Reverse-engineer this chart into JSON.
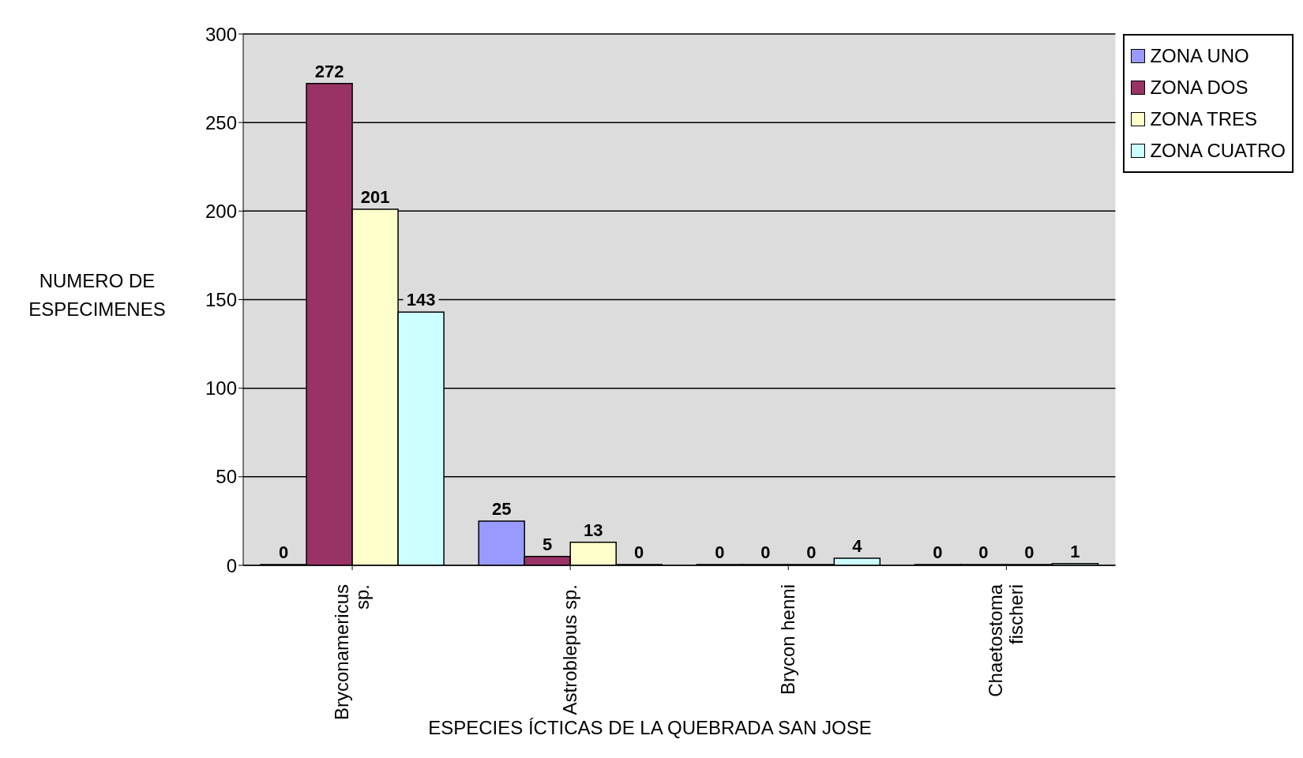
{
  "chart_data": {
    "type": "bar",
    "xlabel": "ESPECIES ÍCTICAS DE LA QUEBRADA SAN JOSE",
    "ylabel": "NUMERO DE ESPECIMENES",
    "categories": [
      "Bryconamericus sp.",
      "Astroblepus sp.",
      "Brycon henni",
      "Chaetostoma fischeri"
    ],
    "series": [
      {
        "name": "ZONA UNO",
        "color": "#9999ff",
        "values": [
          0,
          25,
          0,
          0
        ]
      },
      {
        "name": "ZONA DOS",
        "color": "#993366",
        "values": [
          272,
          5,
          0,
          0
        ]
      },
      {
        "name": "ZONA TRES",
        "color": "#ffffcc",
        "values": [
          201,
          13,
          0,
          0
        ]
      },
      {
        "name": "ZONA CUATRO",
        "color": "#ccffff",
        "values": [
          143,
          0,
          4,
          1
        ]
      }
    ],
    "ylim": [
      0,
      300
    ],
    "yticks": [
      0,
      50,
      100,
      150,
      200,
      250,
      300
    ],
    "grid": "y",
    "legend": "top right",
    "data_labels": true
  }
}
